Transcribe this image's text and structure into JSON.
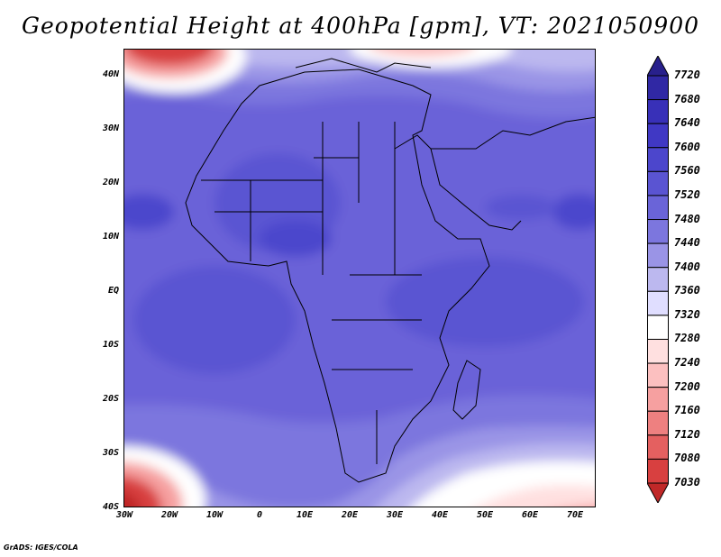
{
  "title": "Geopotential Height at 400hPa [gpm], VT: 2021050900",
  "credit": "GrADS: IGES/COLA",
  "latitude_labels": [
    "40N",
    "30N",
    "20N",
    "10N",
    "EQ",
    "10S",
    "20S",
    "30S",
    "40S"
  ],
  "longitude_labels": [
    "30W",
    "20W",
    "10W",
    "0",
    "10E",
    "20E",
    "30E",
    "40E",
    "50E",
    "60E",
    "70E"
  ],
  "colorbar": {
    "levels": [
      "7720",
      "7680",
      "7640",
      "7600",
      "7560",
      "7520",
      "7480",
      "7440",
      "7400",
      "7360",
      "7320",
      "7280",
      "7240",
      "7200",
      "7160",
      "7120",
      "7080",
      "7030"
    ],
    "colors": [
      "#28208c",
      "#3028a4",
      "#3830b8",
      "#4038c4",
      "#4c46cc",
      "#5a54d2",
      "#6a64d8",
      "#7c76de",
      "#9a94e6",
      "#bcb8ef",
      "#e0deff",
      "#ffffff",
      "#ffe0e0",
      "#fcc0c0",
      "#f6a0a0",
      "#ee8080",
      "#e46060",
      "#d84040",
      "#c02828"
    ]
  }
}
